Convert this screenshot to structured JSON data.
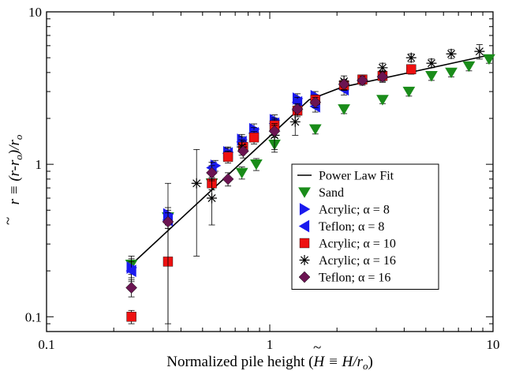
{
  "chart_data": {
    "type": "scatter",
    "xscale": "log",
    "yscale": "log",
    "xlim": [
      0.1,
      10
    ],
    "ylim": [
      0.08,
      10
    ],
    "x_ticks": [
      0.1,
      1,
      10
    ],
    "x_tick_labels": [
      "0.1",
      "1",
      "10"
    ],
    "y_ticks": [
      0.1,
      1,
      10
    ],
    "y_tick_labels": [
      "0.1",
      "1",
      "10"
    ],
    "xlabel_parts": [
      "Normalized pile height (",
      "H",
      " ≡ H/r",
      "o",
      ")"
    ],
    "ylabel_parts": [
      "r",
      " ≡ (r-r",
      "o",
      ")/r",
      "o"
    ],
    "grid": false,
    "legend_position": "center-right",
    "series": [
      {
        "name": "Power Law Fit",
        "marker": "line",
        "color": "#000000",
        "points": [
          [
            0.24,
            0.22
          ],
          [
            1.5,
            2.65
          ],
          [
            2.1,
            3.2
          ],
          [
            9.6,
            5.2
          ]
        ]
      },
      {
        "name": "Sand",
        "marker": "triangle-down",
        "color": "#1a8c1a",
        "points": [
          [
            0.24,
            0.22
          ],
          [
            0.35,
            0.45
          ],
          [
            0.55,
            0.75
          ],
          [
            0.75,
            0.88
          ],
          [
            0.87,
            1.0
          ],
          [
            1.05,
            1.35
          ],
          [
            1.6,
            1.7
          ],
          [
            2.15,
            2.3
          ],
          [
            3.2,
            2.65
          ],
          [
            4.2,
            3.0
          ],
          [
            5.3,
            3.8
          ],
          [
            6.5,
            4.0
          ],
          [
            7.8,
            4.4
          ],
          [
            9.6,
            4.9
          ]
        ],
        "errors": [
          0.03,
          0.05,
          0.07,
          0.08,
          0.09,
          0.15,
          0.12,
          0.15,
          0.15,
          0.2,
          0.25,
          0.25,
          0.3,
          0.3
        ]
      },
      {
        "name": "Acrylic; α = 8",
        "marker": "triangle-right",
        "color": "#1a1aee",
        "points": [
          [
            0.24,
            0.21
          ],
          [
            0.35,
            0.47
          ],
          [
            0.57,
            0.98
          ],
          [
            0.65,
            1.2
          ],
          [
            0.75,
            1.45
          ],
          [
            0.85,
            1.7
          ],
          [
            1.05,
            1.95
          ],
          [
            1.33,
            2.7
          ],
          [
            1.6,
            2.8
          ]
        ],
        "errors": [
          0.03,
          0.05,
          0.08,
          0.1,
          0.12,
          0.14,
          0.16,
          0.2,
          0.2
        ]
      },
      {
        "name": "Teflon; α = 8",
        "marker": "triangle-left",
        "color": "#1a1aee",
        "points": [
          [
            0.24,
            0.2
          ],
          [
            0.35,
            0.43
          ],
          [
            0.55,
            0.95
          ],
          [
            0.65,
            1.18
          ],
          [
            0.75,
            1.4
          ],
          [
            0.85,
            1.6
          ],
          [
            1.05,
            1.85
          ],
          [
            1.33,
            2.55
          ],
          [
            1.6,
            2.4
          ],
          [
            2.15,
            3.1
          ]
        ],
        "errors": [
          0.03,
          0.05,
          0.08,
          0.1,
          0.12,
          0.14,
          0.16,
          0.2,
          0.2,
          0.25
        ]
      },
      {
        "name": "Acrylic; α = 10",
        "marker": "square",
        "color": "#ee1111",
        "points": [
          [
            0.24,
            0.1
          ],
          [
            0.35,
            0.23
          ],
          [
            0.55,
            0.75
          ],
          [
            0.65,
            1.12
          ],
          [
            0.76,
            1.3
          ],
          [
            0.85,
            1.5
          ],
          [
            1.05,
            1.8
          ],
          [
            1.33,
            2.25
          ],
          [
            1.6,
            2.65
          ],
          [
            2.15,
            3.3
          ],
          [
            2.6,
            3.6
          ],
          [
            3.2,
            3.8
          ],
          [
            4.3,
            4.2
          ]
        ],
        "errors": [
          0.01,
          0.15,
          0.07,
          0.1,
          0.12,
          0.14,
          0.16,
          0.2,
          0.2,
          0.25,
          0.25,
          0.3,
          0.3
        ]
      },
      {
        "name": "Acrylic; α = 16",
        "marker": "asterisk",
        "color": "#000000",
        "points": [
          [
            0.47,
            0.75
          ],
          [
            0.55,
            0.6
          ],
          [
            0.75,
            1.3
          ],
          [
            1.05,
            1.55
          ],
          [
            1.3,
            1.9
          ],
          [
            2.15,
            3.5
          ],
          [
            3.2,
            4.3
          ],
          [
            4.3,
            5.0
          ],
          [
            5.3,
            4.6
          ],
          [
            6.5,
            5.3
          ],
          [
            8.7,
            5.5
          ]
        ],
        "errors": [
          0.5,
          0.2,
          0.15,
          0.3,
          0.35,
          0.3,
          0.3,
          0.3,
          0.3,
          0.35,
          0.6
        ]
      },
      {
        "name": "Teflon;  α = 16",
        "marker": "diamond",
        "color": "#6b1452",
        "points": [
          [
            0.24,
            0.155
          ],
          [
            0.35,
            0.42
          ],
          [
            0.55,
            0.88
          ],
          [
            0.65,
            0.8
          ],
          [
            0.76,
            1.22
          ],
          [
            1.05,
            1.65
          ],
          [
            1.33,
            2.3
          ],
          [
            1.6,
            2.55
          ],
          [
            2.15,
            3.35
          ],
          [
            2.6,
            3.55
          ],
          [
            3.2,
            3.75
          ]
        ],
        "errors": [
          0.02,
          0.33,
          0.1,
          0.08,
          0.12,
          0.15,
          0.2,
          0.2,
          0.25,
          0.25,
          0.3
        ]
      }
    ]
  }
}
